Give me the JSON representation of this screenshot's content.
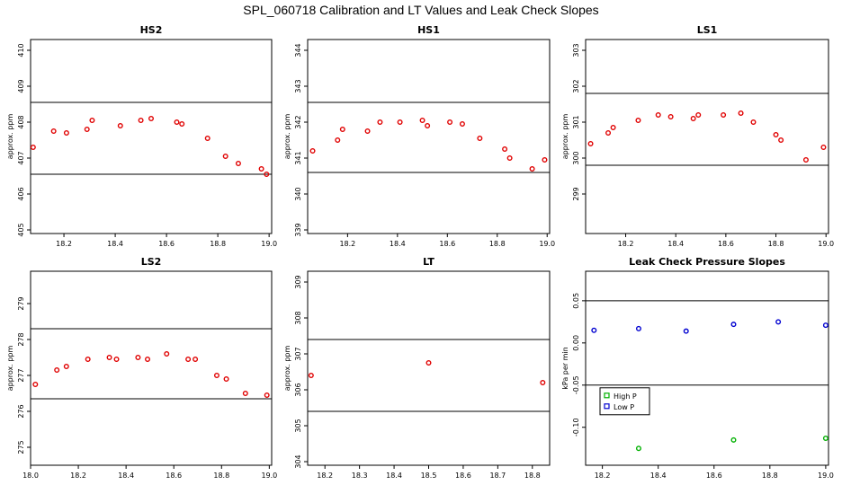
{
  "title": "SPL_060718  Calibration and LT Values and Leak Check Slopes",
  "colors": {
    "cal_points": "#e00000",
    "high_p": "#00b000",
    "low_p": "#0000d0",
    "axes": "#000000"
  },
  "chart_data": [
    {
      "id": "hs2",
      "type": "scatter",
      "title": "HS2",
      "ylabel": "approx. ppm",
      "xlim": [
        18.07,
        19.01
      ],
      "ylim": [
        404.9,
        410.3
      ],
      "xticks": [
        "18.2",
        "18.4",
        "18.6",
        "18.8",
        "19.0"
      ],
      "yticks": [
        "405",
        "406",
        "407",
        "408",
        "409",
        "410"
      ],
      "hlines": [
        408.55,
        406.55
      ],
      "series": [
        {
          "shape": "circle",
          "color": "#e00000",
          "x": [
            18.08,
            18.16,
            18.21,
            18.29,
            18.31,
            18.42,
            18.5,
            18.54,
            18.64,
            18.66,
            18.76,
            18.83,
            18.88,
            18.97,
            18.99
          ],
          "y": [
            407.3,
            407.75,
            407.7,
            407.8,
            408.05,
            407.9,
            408.05,
            408.1,
            408.0,
            407.95,
            407.55,
            407.05,
            406.85,
            406.7,
            406.55
          ]
        }
      ]
    },
    {
      "id": "hs1",
      "type": "scatter",
      "title": "HS1",
      "ylabel": "approx. ppm",
      "xlim": [
        18.04,
        19.01
      ],
      "ylim": [
        338.9,
        344.3
      ],
      "xticks": [
        "18.2",
        "18.4",
        "18.6",
        "18.8",
        "19.0"
      ],
      "yticks": [
        "339",
        "340",
        "341",
        "342",
        "343",
        "344"
      ],
      "hlines": [
        342.55,
        340.6
      ],
      "series": [
        {
          "shape": "circle",
          "color": "#e00000",
          "x": [
            18.06,
            18.16,
            18.18,
            18.28,
            18.33,
            18.41,
            18.5,
            18.52,
            18.61,
            18.66,
            18.73,
            18.83,
            18.85,
            18.94,
            18.99
          ],
          "y": [
            341.2,
            341.5,
            341.8,
            341.75,
            342.0,
            342.0,
            342.05,
            341.9,
            342.0,
            341.95,
            341.55,
            341.25,
            341.0,
            340.7,
            340.95
          ]
        }
      ]
    },
    {
      "id": "ls1",
      "type": "scatter",
      "title": "LS1",
      "ylabel": "approx. ppm",
      "xlim": [
        18.04,
        19.01
      ],
      "ylim": [
        297.9,
        303.3
      ],
      "xticks": [
        "18.2",
        "18.4",
        "18.6",
        "18.8",
        "19.0"
      ],
      "yticks": [
        "299",
        "300",
        "301",
        "302",
        "303"
      ],
      "hlines": [
        301.8,
        299.8
      ],
      "series": [
        {
          "shape": "circle",
          "color": "#e00000",
          "x": [
            18.06,
            18.13,
            18.15,
            18.25,
            18.33,
            18.38,
            18.47,
            18.49,
            18.59,
            18.66,
            18.71,
            18.8,
            18.82,
            18.92,
            18.99
          ],
          "y": [
            300.4,
            300.7,
            300.85,
            301.05,
            301.2,
            301.15,
            301.1,
            301.2,
            301.2,
            301.25,
            301.0,
            300.65,
            300.5,
            299.95,
            300.3
          ]
        }
      ]
    },
    {
      "id": "ls2",
      "type": "scatter",
      "title": "LS2",
      "ylabel": "approx. ppm",
      "xlim": [
        18.0,
        19.01
      ],
      "ylim": [
        274.5,
        279.9
      ],
      "xticks": [
        "18.0",
        "18.2",
        "18.4",
        "18.6",
        "18.8",
        "19.0"
      ],
      "yticks": [
        "275",
        "276",
        "277",
        "278",
        "279"
      ],
      "hlines": [
        278.3,
        276.35
      ],
      "series": [
        {
          "shape": "circle",
          "color": "#e00000",
          "x": [
            18.02,
            18.11,
            18.15,
            18.24,
            18.33,
            18.36,
            18.45,
            18.49,
            18.57,
            18.66,
            18.69,
            18.78,
            18.82,
            18.9,
            18.99
          ],
          "y": [
            276.75,
            277.15,
            277.25,
            277.45,
            277.5,
            277.45,
            277.5,
            277.45,
            277.6,
            277.45,
            277.45,
            277.0,
            276.9,
            276.5,
            276.45
          ]
        }
      ]
    },
    {
      "id": "lt",
      "type": "scatter",
      "title": "LT",
      "ylabel": "approx. ppm",
      "xlim": [
        18.15,
        18.85
      ],
      "ylim": [
        303.9,
        309.3
      ],
      "xticks": [
        "18.2",
        "18.3",
        "18.4",
        "18.5",
        "18.6",
        "18.7",
        "18.8"
      ],
      "yticks": [
        "304",
        "305",
        "306",
        "307",
        "308",
        "309"
      ],
      "hlines": [
        307.4,
        305.4
      ],
      "series": [
        {
          "shape": "circle",
          "color": "#e00000",
          "x": [
            18.16,
            18.5,
            18.83
          ],
          "y": [
            306.4,
            306.75,
            306.2
          ]
        }
      ]
    },
    {
      "id": "leak",
      "type": "scatter",
      "title": "Leak Check Pressure Slopes",
      "ylabel": "kPa per min",
      "xlim": [
        18.14,
        19.01
      ],
      "ylim": [
        -0.145,
        0.085
      ],
      "xticks": [
        "18.2",
        "18.4",
        "18.6",
        "18.8",
        "19.0"
      ],
      "yticks": [
        "-0.10",
        "-0.05",
        "0.00",
        "0.05"
      ],
      "hlines": [
        0.05,
        -0.05
      ],
      "legend": {
        "position": "bottom-left",
        "entries": [
          "High P",
          "Low P"
        ]
      },
      "series": [
        {
          "name": "High P",
          "shape": "circle",
          "color": "#00b000",
          "x": [
            18.33,
            18.67,
            19.0
          ],
          "y": [
            -0.125,
            -0.115,
            -0.113
          ]
        },
        {
          "name": "Low P",
          "shape": "circle",
          "color": "#0000d0",
          "x": [
            18.17,
            18.33,
            18.5,
            18.67,
            18.83,
            19.0
          ],
          "y": [
            0.015,
            0.017,
            0.014,
            0.022,
            0.025,
            0.021
          ]
        }
      ]
    }
  ]
}
